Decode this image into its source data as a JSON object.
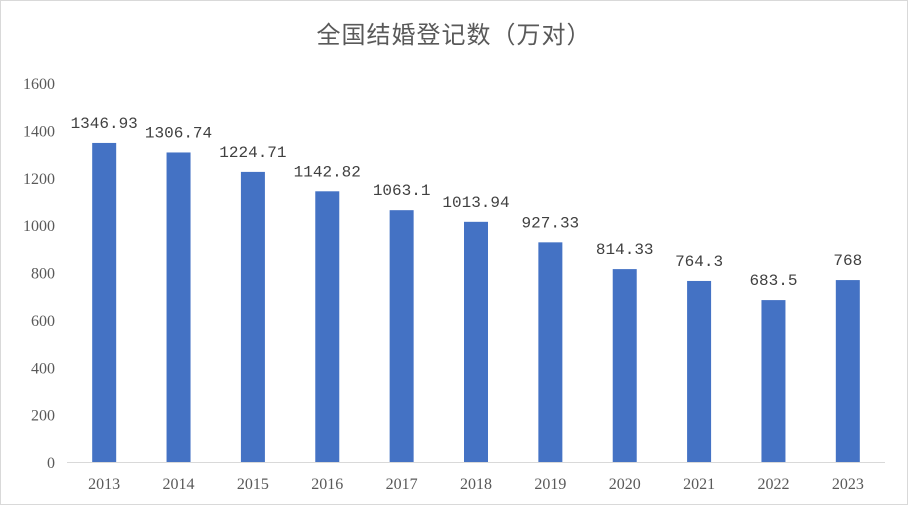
{
  "chart_data": {
    "type": "bar",
    "title": "全国结婚登记数（万对）",
    "xlabel": "",
    "ylabel": "",
    "categories": [
      "2013",
      "2014",
      "2015",
      "2016",
      "2017",
      "2018",
      "2019",
      "2020",
      "2021",
      "2022",
      "2023"
    ],
    "values": [
      1346.93,
      1306.74,
      1224.71,
      1142.82,
      1063.1,
      1013.94,
      927.33,
      814.33,
      764.3,
      683.5,
      768
    ],
    "value_labels": [
      "1346.93",
      "1306.74",
      "1224.71",
      "1142.82",
      "1063.1",
      "1013.94",
      "927.33",
      "814.33",
      "764.3",
      "683.5",
      "768"
    ],
    "ylim": [
      0,
      1600
    ],
    "yticks": [
      0,
      200,
      400,
      600,
      800,
      1000,
      1200,
      1400,
      1600
    ],
    "grid": false,
    "legend": "none",
    "bar_color": "#4472c4",
    "axis_color": "#d9d9d9"
  }
}
